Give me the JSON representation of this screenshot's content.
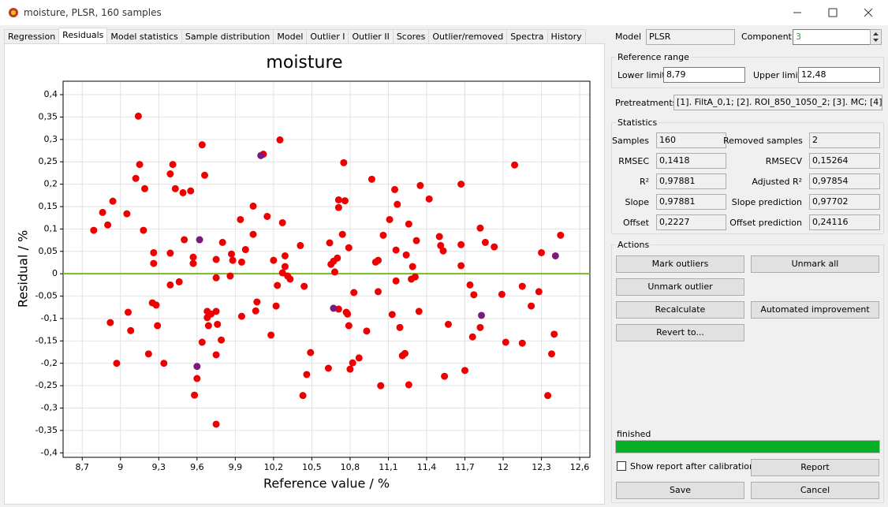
{
  "window": {
    "title": "moisture, PLSR, 160 samples"
  },
  "tabs": {
    "items": [
      "Regression",
      "Residuals",
      "Model statistics",
      "Sample distribution",
      "Model",
      "Outlier I",
      "Outlier II",
      "Scores",
      "Outlier/removed",
      "Spectra",
      "History"
    ],
    "active": 1
  },
  "model": {
    "label": "Model",
    "value": "PLSR"
  },
  "component": {
    "label": "Component",
    "value": "3"
  },
  "reference_range": {
    "title": "Reference range",
    "lower_label": "Lower limit",
    "lower": "8,79",
    "upper_label": "Upper limit",
    "upper": "12,48"
  },
  "pretreatments": {
    "label": "Pretreatments",
    "value": "[1]. FiltA_0,1; [2]. ROI_850_1050_2; [3]. MC; [4]."
  },
  "statistics": {
    "title": "Statistics",
    "rows": [
      [
        "Samples",
        "160",
        "Removed samples",
        "2"
      ],
      [
        "RMSEC",
        "0,1418",
        "RMSECV",
        "0,15264"
      ],
      [
        "R²",
        "0,97881",
        "Adjusted R²",
        "0,97854"
      ],
      [
        "Slope",
        "0,97881",
        "Slope prediction",
        "0,97702"
      ],
      [
        "Offset",
        "0,2227",
        "Offset prediction",
        "0,24116"
      ]
    ]
  },
  "actions": {
    "title": "Actions",
    "mark_outliers": "Mark outliers",
    "unmark_all": "Unmark all",
    "unmark_outlier": "Unmark outlier",
    "recalculate": "Recalculate",
    "automated_improvement": "Automated improvement",
    "revert_to": "Revert to..."
  },
  "status": "finished",
  "show_report": "Show report after calibration",
  "buttons": {
    "report": "Report",
    "save": "Save",
    "cancel": "Cancel"
  },
  "chart_data": {
    "type": "scatter",
    "title": "moisture",
    "x_label": "Reference value / %",
    "y_label": "Residual / %",
    "xlim": [
      8.55,
      12.68
    ],
    "ylim": [
      -0.41,
      0.43
    ],
    "grid": true,
    "xticks": [
      {
        "value": 8.7,
        "label": "8,7"
      },
      9,
      {
        "value": 9.3,
        "label": "9,3"
      },
      {
        "value": 9.6,
        "label": "9,6"
      },
      {
        "value": 9.9,
        "label": "9,9"
      },
      {
        "value": 10.2,
        "label": "10,2"
      },
      {
        "value": 10.5,
        "label": "10,5"
      },
      {
        "value": 10.8,
        "label": "10,8"
      },
      {
        "value": 11.1,
        "label": "11,1"
      },
      {
        "value": 11.4,
        "label": "11,4"
      },
      {
        "value": 11.7,
        "label": "11,7"
      },
      12,
      {
        "value": 12.3,
        "label": "12,3"
      },
      {
        "value": 12.6,
        "label": "12,6"
      }
    ],
    "yticks": [
      {
        "value": -0.4,
        "label": "-0,4"
      },
      {
        "value": -0.35,
        "label": "-0,35"
      },
      {
        "value": -0.3,
        "label": "-0,3"
      },
      {
        "value": -0.25,
        "label": "-0,25"
      },
      {
        "value": -0.2,
        "label": "-0,2"
      },
      {
        "value": -0.15,
        "label": "-0,15"
      },
      {
        "value": -0.1,
        "label": "-0,1"
      },
      {
        "value": -0.05,
        "label": "-0,05"
      },
      0,
      {
        "value": 0.05,
        "label": "0,05"
      },
      {
        "value": 0.1,
        "label": "0,1"
      },
      {
        "value": 0.15,
        "label": "0,15"
      },
      {
        "value": 0.2,
        "label": "0,2"
      },
      {
        "value": 0.25,
        "label": "0,25"
      },
      {
        "value": 0.3,
        "label": "0,3"
      },
      {
        "value": 0.35,
        "label": "0,35"
      },
      {
        "value": 0.4,
        "label": "0,4"
      }
    ],
    "reference_line": {
      "value": 0,
      "color": "#7ab828"
    },
    "series": [
      {
        "color": "#ee0000",
        "x": [
          8.79,
          8.86,
          8.9,
          8.92,
          8.94,
          8.97,
          9.05,
          9.06,
          9.08,
          9.12,
          9.14,
          9.15,
          9.18,
          9.19,
          9.22,
          9.25,
          9.26,
          9.26,
          9.28,
          9.29,
          9.34,
          9.39,
          9.39,
          9.41,
          9.39,
          9.43,
          9.46,
          9.49,
          9.5,
          9.55,
          9.57,
          9.57,
          9.58,
          9.6,
          9.64,
          9.64,
          9.66,
          9.68,
          9.68,
          9.69,
          9.71,
          9.75,
          9.75,
          9.75,
          9.75,
          9.75,
          9.76,
          9.79,
          9.8,
          9.86,
          9.87,
          9.88,
          9.94,
          9.95,
          9.95,
          9.98,
          10.04,
          10.04,
          10.06,
          10.07,
          10.12,
          10.15,
          10.18,
          10.2,
          10.22,
          10.23,
          10.25,
          10.27,
          10.27,
          10.29,
          10.29,
          10.31,
          10.33,
          10.41,
          10.44,
          10.43,
          10.46,
          10.49,
          10.63,
          10.64,
          10.65,
          10.67,
          10.68,
          10.7,
          10.71,
          10.71,
          10.71,
          10.74,
          10.75,
          10.76,
          10.77,
          10.78,
          10.79,
          10.79,
          10.8,
          10.82,
          10.83,
          10.87,
          10.93,
          10.97,
          11.0,
          11.02,
          11.02,
          11.04,
          11.06,
          11.11,
          11.13,
          11.15,
          11.16,
          11.16,
          11.17,
          11.19,
          11.21,
          11.23,
          11.24,
          11.26,
          11.26,
          11.28,
          11.29,
          11.31,
          11.32,
          11.34,
          11.35,
          11.42,
          11.5,
          11.51,
          11.53,
          11.54,
          11.57,
          11.67,
          11.67,
          11.67,
          11.7,
          11.74,
          11.77,
          11.76,
          11.82,
          11.82,
          11.86,
          11.93,
          11.99,
          12.02,
          12.09,
          12.15,
          12.15,
          12.22,
          12.28,
          12.3,
          12.35,
          12.38,
          12.4,
          12.45
        ],
        "values": [
          0.097,
          0.137,
          0.109,
          -0.109,
          0.162,
          -0.2,
          0.134,
          -0.086,
          -0.127,
          0.213,
          0.352,
          0.244,
          0.097,
          0.19,
          -0.179,
          -0.065,
          0.047,
          0.023,
          -0.07,
          -0.116,
          -0.2,
          0.046,
          0.223,
          0.244,
          -0.025,
          0.19,
          -0.018,
          0.181,
          0.076,
          0.185,
          0.037,
          0.023,
          -0.271,
          -0.234,
          -0.153,
          0.288,
          0.22,
          -0.084,
          -0.098,
          -0.116,
          -0.09,
          0.032,
          -0.009,
          -0.084,
          -0.181,
          -0.336,
          -0.113,
          -0.148,
          0.07,
          -0.005,
          0.044,
          0.03,
          0.121,
          -0.095,
          0.026,
          0.054,
          0.088,
          0.151,
          -0.083,
          -0.063,
          0.267,
          0.128,
          -0.137,
          0.03,
          -0.072,
          -0.026,
          0.299,
          0.114,
          0.002,
          0.04,
          0.016,
          -0.005,
          -0.012,
          0.063,
          -0.028,
          -0.272,
          -0.225,
          -0.176,
          -0.211,
          0.069,
          0.021,
          0.028,
          0.004,
          0.035,
          0.148,
          -0.079,
          0.165,
          0.088,
          0.248,
          0.163,
          -0.086,
          -0.09,
          0.058,
          -0.116,
          -0.213,
          -0.199,
          -0.042,
          -0.188,
          -0.128,
          0.211,
          0.026,
          0.03,
          -0.04,
          -0.25,
          0.086,
          0.121,
          -0.091,
          0.188,
          -0.016,
          0.053,
          0.155,
          -0.12,
          -0.183,
          -0.178,
          0.042,
          -0.248,
          0.111,
          -0.012,
          0.016,
          -0.007,
          0.074,
          -0.084,
          0.197,
          0.167,
          0.083,
          0.063,
          0.051,
          -0.229,
          -0.113,
          0.2,
          0.018,
          0.065,
          -0.216,
          -0.025,
          -0.047,
          -0.141,
          0.102,
          -0.12,
          0.07,
          0.06,
          -0.046,
          -0.153,
          0.243,
          -0.155,
          -0.028,
          -0.072,
          -0.04,
          0.047,
          -0.272,
          -0.179,
          -0.135,
          0.086
        ]
      },
      {
        "color": "#7b1a7b",
        "x": [
          9.62,
          9.6,
          10.1,
          10.67,
          11.83,
          12.41
        ],
        "values": [
          0.076,
          -0.207,
          0.264,
          -0.077,
          -0.093,
          0.04
        ]
      }
    ]
  }
}
